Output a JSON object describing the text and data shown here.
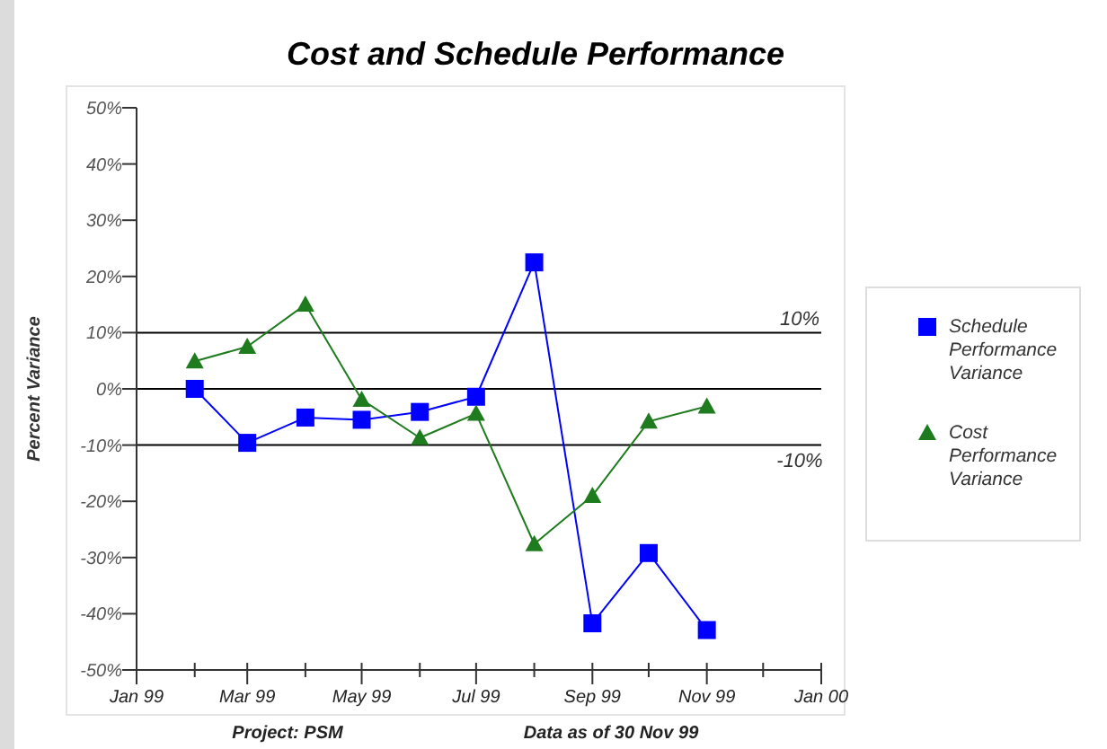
{
  "chart_data": {
    "type": "line",
    "title": "Cost and Schedule Performance",
    "ylabel": "Percent Variance",
    "x": [
      "1999-02",
      "1999-03",
      "1999-04",
      "1999-05",
      "1999-06",
      "1999-07",
      "1999-08",
      "1999-09",
      "1999-10",
      "1999-11"
    ],
    "series": [
      {
        "name": "Schedule Performance Variance",
        "color": "#0000ff",
        "marker": "square",
        "values": [
          0,
          -9.6,
          -5.1,
          -5.5,
          -4.1,
          -1.4,
          22.5,
          -41.7,
          -29.2,
          -42.9
        ]
      },
      {
        "name": "Cost Performance Variance",
        "color": "#1e7b1e",
        "marker": "triangle",
        "values": [
          4.9,
          7.5,
          15,
          -1.9,
          -8.7,
          -4.4,
          -27.6,
          -19,
          -5.8,
          -3.1
        ]
      }
    ],
    "xlim": [
      "1999-01",
      "2000-01"
    ],
    "xticks": [
      {
        "value": "1999-01",
        "label": "Jan 99"
      },
      {
        "value": "1999-02",
        "label": null
      },
      {
        "value": "1999-03",
        "label": "Mar 99"
      },
      {
        "value": "1999-04",
        "label": null
      },
      {
        "value": "1999-05",
        "label": "May 99"
      },
      {
        "value": "1999-06",
        "label": null
      },
      {
        "value": "1999-07",
        "label": "Jul 99"
      },
      {
        "value": "1999-08",
        "label": null
      },
      {
        "value": "1999-09",
        "label": "Sep 99"
      },
      {
        "value": "1999-10",
        "label": null
      },
      {
        "value": "1999-11",
        "label": "Nov 99"
      },
      {
        "value": "1999-12",
        "label": null
      },
      {
        "value": "2000-01",
        "label": "Jan 00"
      }
    ],
    "ylim": [
      -50,
      50
    ],
    "yticks": [
      {
        "value": -50,
        "label": "-50%"
      },
      {
        "value": -40,
        "label": "-40%"
      },
      {
        "value": -30,
        "label": "-30%"
      },
      {
        "value": -20,
        "label": "-20%"
      },
      {
        "value": -10,
        "label": "-10%"
      },
      {
        "value": 0,
        "label": "0%"
      },
      {
        "value": 10,
        "label": "10%"
      },
      {
        "value": 20,
        "label": "20%"
      },
      {
        "value": 30,
        "label": "30%"
      },
      {
        "value": 40,
        "label": "40%"
      },
      {
        "value": 50,
        "label": "50%"
      }
    ],
    "ref_lines": [
      {
        "axis": "y",
        "value": 10,
        "label": "10%",
        "color": "#000000"
      },
      {
        "axis": "y",
        "value": 0,
        "label": null,
        "color": "#000000"
      },
      {
        "axis": "y",
        "value": -10,
        "label": "-10%",
        "color": "#000000"
      }
    ],
    "grid": false,
    "legend": "right",
    "annotations": [
      "Project: PSM",
      "Data as of 30 Nov 99"
    ]
  }
}
